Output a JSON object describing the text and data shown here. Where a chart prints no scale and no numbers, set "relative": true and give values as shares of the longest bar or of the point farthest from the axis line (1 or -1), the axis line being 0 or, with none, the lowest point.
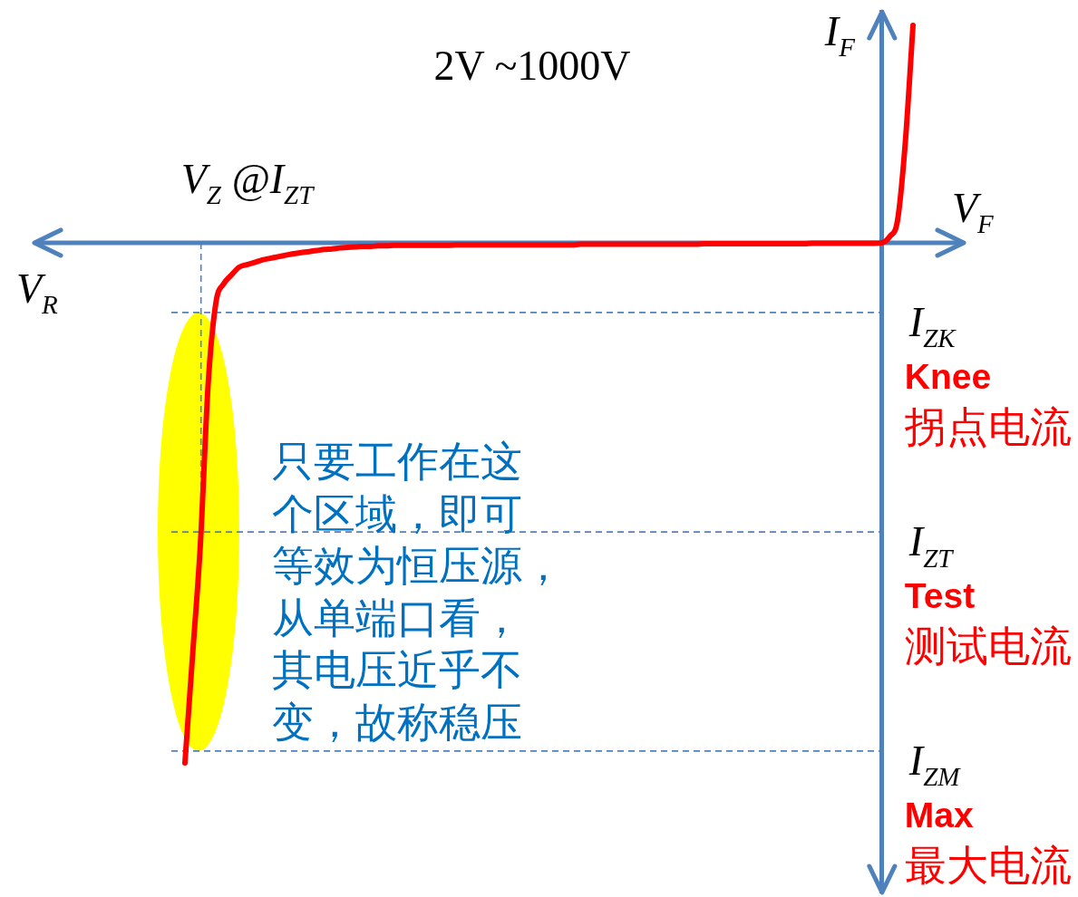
{
  "chart_data": {
    "type": "line",
    "title": "2V ~1000V",
    "xlabel": "V$_{F}$",
    "ylabel": "I$_{F}$",
    "relative": true,
    "tick_labels": false,
    "legend": false,
    "grid": false,
    "categories": [
      null,
      null,
      null,
      null,
      null,
      null,
      null,
      null,
      null,
      null,
      null,
      null,
      null,
      null,
      null,
      null,
      null,
      null,
      null,
      null,
      null,
      null,
      null,
      null,
      null,
      null,
      null,
      null,
      null,
      null,
      null,
      null,
      null,
      null,
      null,
      null,
      null,
      null,
      null,
      null,
      null,
      null,
      null,
      null,
      null,
      null,
      null,
      null,
      null,
      null,
      null,
      null,
      null,
      null,
      null,
      null,
      null,
      null,
      null,
      null,
      null,
      null,
      null,
      null,
      null,
      null,
      null,
      null,
      null,
      null,
      null,
      null,
      null,
      null,
      null,
      null,
      null,
      null,
      null,
      null,
      null,
      null,
      null,
      null,
      null,
      null,
      null,
      null,
      null,
      null,
      null,
      null,
      null,
      null,
      null
    ],
    "series": [
      {
        "color": "#ff0000",
        "values": [
          -1.0,
          -0.79,
          -0.578,
          -0.271,
          -0.115,
          -0.079,
          -0.062,
          -0.047,
          -0.042,
          -0.038,
          -0.033,
          -0.03,
          -0.027,
          -0.024,
          -0.021,
          -0.019,
          -0.017,
          -0.015,
          -0.013,
          -0.012,
          -0.01,
          -0.009,
          -0.008,
          -0.007,
          -0.007,
          -0.006,
          -0.006,
          -0.005,
          -0.005,
          -0.005,
          -0.005,
          -0.005,
          -0.005,
          -0.005,
          -0.005,
          -0.004,
          -0.004,
          -0.004,
          -0.004,
          -0.004,
          -0.004,
          -0.004,
          -0.004,
          -0.004,
          -0.004,
          -0.004,
          -0.004,
          -0.004,
          -0.004,
          -0.004,
          -0.004,
          -0.003,
          -0.003,
          -0.003,
          -0.003,
          -0.003,
          -0.003,
          -0.003,
          -0.003,
          -0.003,
          -0.003,
          -0.003,
          -0.003,
          -0.003,
          -0.003,
          -0.003,
          -0.003,
          -0.002,
          -0.002,
          -0.002,
          -0.002,
          -0.002,
          -0.002,
          -0.002,
          -0.002,
          -0.002,
          -0.002,
          -0.002,
          -0.002,
          -0.002,
          -0.002,
          -0.001,
          -0.001,
          -0.001,
          -0.001,
          -0.001,
          -0.001,
          -0.001,
          -0.001,
          -0.001,
          0,
          0.012,
          0.043,
          0.192,
          0.418
        ]
      }
    ],
    "ref_lines": [
      {
        "axis": "y",
        "value": -0.134,
        "label": "I$_{ZK}$",
        "color": "#4f81bd",
        "line_style": "dashed"
      },
      {
        "axis": "y",
        "value": -0.556,
        "label": "I$_{ZT}$",
        "color": "#4f81bd",
        "line_style": "dashed"
      },
      {
        "axis": "y",
        "value": -0.977,
        "label": "I$_{ZM}$",
        "color": "#4f81bd",
        "line_style": "dashed"
      },
      {
        "axis": "y",
        "value": 0,
        "color": "#4f81bd",
        "line_style": "solid"
      }
    ],
    "annotations": [
      "V$_{R}$",
      "V$_{Z}$ @I$_{ZT}$",
      "只要工作在这个区域，即可等效为恒压源，从单端口看，其电压近乎不变，故称稳压",
      "Knee",
      "拐点电流",
      "Test",
      "测试电流",
      "Max",
      "最大电流"
    ]
  }
}
